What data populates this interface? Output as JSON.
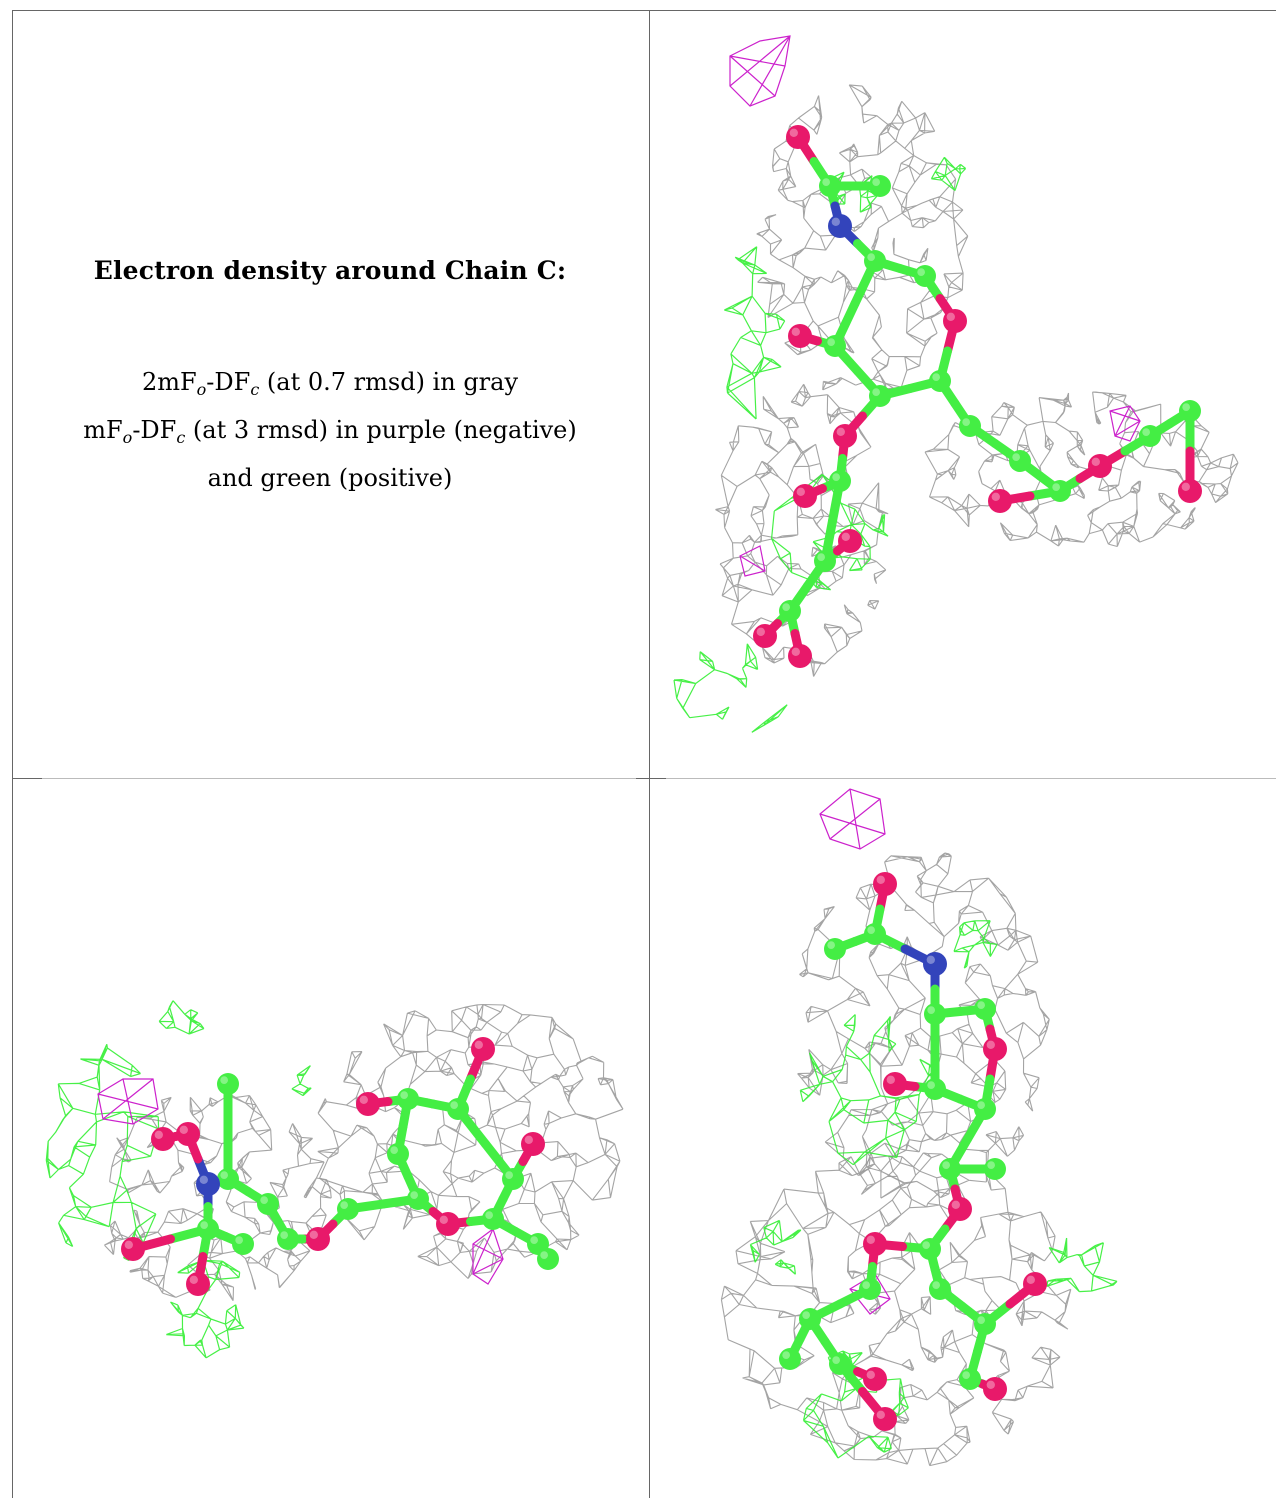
{
  "legend": {
    "title": "Electron density around Chain C:",
    "line1": "2mFₒ-DFᶜ (at 0.7 rmsd) in gray",
    "line1_parts": {
      "a": "2mF",
      "sub1": "o",
      "b": "-DF",
      "sub2": "c",
      "c": " (at 0.7 rmsd) in gray"
    },
    "line2_parts": {
      "a": "mF",
      "sub1": "o",
      "b": "-DF",
      "sub2": "c",
      "c": " (at 3 rmsd) in purple (negative)"
    },
    "line3": "and green (positive)"
  },
  "colors": {
    "mesh_gray": "#9a9a9a",
    "mesh_green": "#33ee33",
    "mesh_purple": "#cc22cc",
    "carbon": "#44ee44",
    "oxygen": "#e8196a",
    "nitrogen": "#3344bb",
    "border": "#666666"
  },
  "panels": [
    {
      "name": "density-view-1",
      "position_label": "top-right"
    },
    {
      "name": "density-view-2",
      "position_label": "bottom-left"
    },
    {
      "name": "density-view-3",
      "position_label": "bottom-right"
    }
  ]
}
